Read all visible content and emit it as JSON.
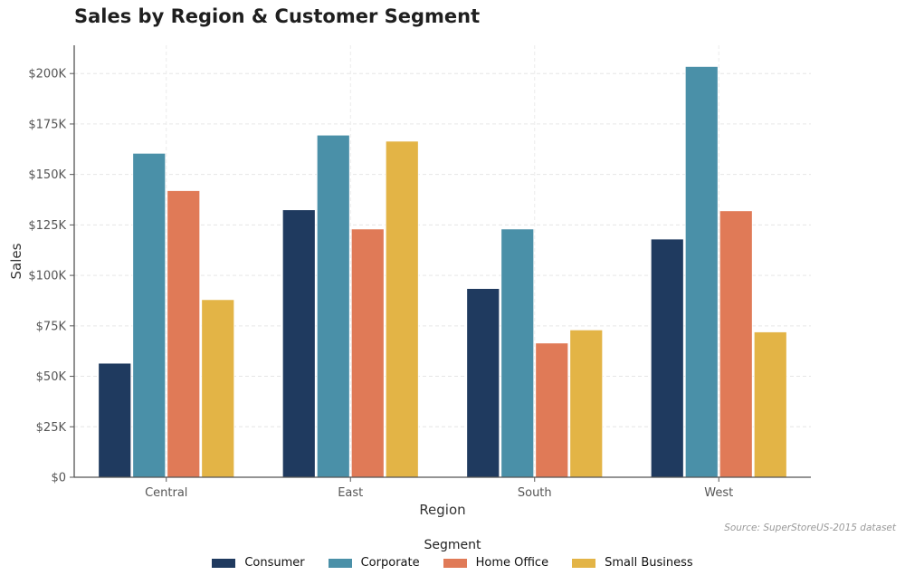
{
  "page": {
    "title": "Sales by Region & Customer Segment",
    "source": "Source: SuperStoreUS-2015 dataset"
  },
  "chart_data": {
    "type": "bar",
    "title": "Sales by Region & Customer Segment",
    "xlabel": "Region",
    "ylabel": "Sales",
    "categories": [
      "Central",
      "East",
      "South",
      "West"
    ],
    "ylim": [
      0,
      214000
    ],
    "yticks": [
      0,
      25000,
      50000,
      75000,
      100000,
      125000,
      150000,
      175000,
      200000
    ],
    "ytick_labels": [
      "$0",
      "$25K",
      "$50K",
      "$75K",
      "$100K",
      "$125K",
      "$150K",
      "$175K",
      "$200K"
    ],
    "grid": true,
    "legend_title": "Segment",
    "legend_position": "bottom-center",
    "series": [
      {
        "name": "Consumer",
        "color": "#1f3a5f",
        "values": [
          56500,
          132500,
          93500,
          118000
        ]
      },
      {
        "name": "Corporate",
        "color": "#4a90a8",
        "values": [
          160500,
          169500,
          123000,
          203500
        ]
      },
      {
        "name": "Home Office",
        "color": "#e07a57",
        "values": [
          142000,
          123000,
          66500,
          132000
        ]
      },
      {
        "name": "Small Business",
        "color": "#e3b446",
        "values": [
          88000,
          166500,
          73000,
          72000
        ]
      }
    ]
  }
}
